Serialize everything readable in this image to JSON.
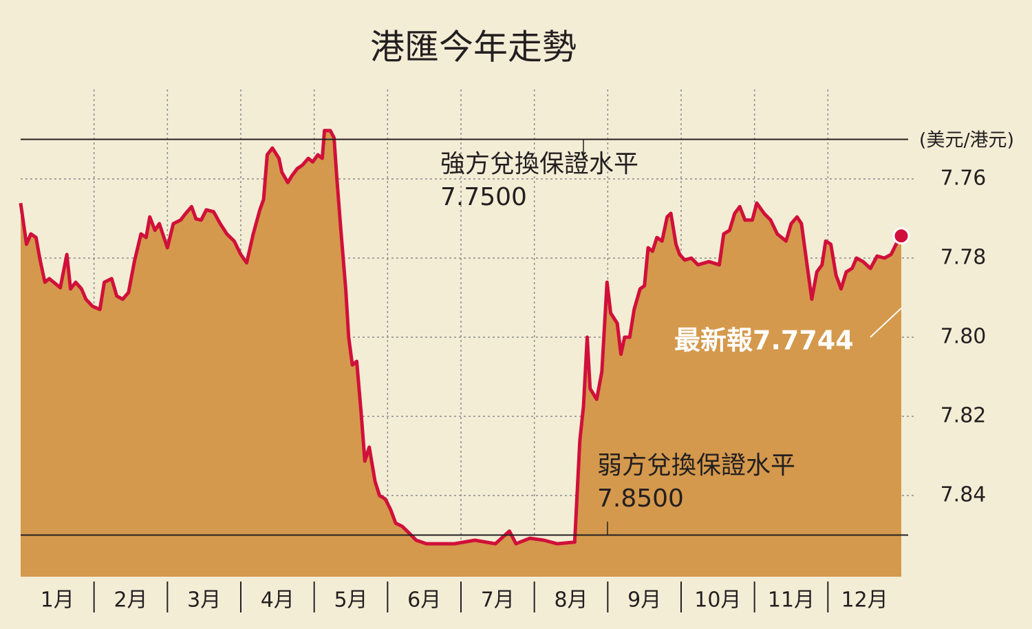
{
  "chart_data": {
    "type": "area",
    "title": "港匯今年走勢",
    "y_label": "(美元/港元)",
    "categories": [
      "1月",
      "2月",
      "3月",
      "4月",
      "5月",
      "6月",
      "7月",
      "8月",
      "9月",
      "10月",
      "11月",
      "12月"
    ],
    "xlim": [
      0,
      12
    ],
    "ylim": [
      7.74,
      7.86
    ],
    "inverted": true,
    "yticks": [
      7.76,
      7.78,
      {
        "value": 7.8,
        "label": "7.80"
      },
      7.82,
      7.84
    ],
    "grid": true,
    "series": [
      {
        "color": "#d0103a",
        "fill": "#d4994c",
        "x": [
          0,
          0.08,
          0.14,
          0.21,
          0.26,
          0.33,
          0.39,
          0.47,
          0.54,
          0.63,
          0.68,
          0.75,
          0.83,
          0.89,
          0.98,
          1.08,
          1.14,
          1.24,
          1.31,
          1.39,
          1.47,
          1.55,
          1.64,
          1.71,
          1.76,
          1.83,
          1.89,
          2.0,
          2.08,
          2.18,
          2.25,
          2.33,
          2.39,
          2.46,
          2.53,
          2.63,
          2.72,
          2.81,
          2.91,
          3.0,
          3.08,
          3.17,
          3.26,
          3.31,
          3.36,
          3.43,
          3.52,
          3.56,
          3.64,
          3.7,
          3.77,
          3.84,
          3.92,
          3.98,
          4.05,
          4.11,
          4.14,
          4.22,
          4.27,
          4.31,
          4.36,
          4.43,
          4.47,
          4.52,
          4.58,
          4.64,
          4.69,
          4.75,
          4.83,
          4.89,
          4.97,
          5.04,
          5.11,
          5.2,
          5.3,
          5.39,
          5.53,
          5.91,
          6.19,
          6.47,
          6.66,
          6.75,
          6.94,
          7.13,
          7.31,
          7.55,
          7.62,
          7.67,
          7.72,
          7.76,
          7.85,
          7.92,
          7.99,
          8.04,
          8.13,
          8.18,
          8.23,
          8.3,
          8.36,
          8.44,
          8.5,
          8.55,
          8.61,
          8.67,
          8.74,
          8.81,
          8.86,
          8.93,
          8.98,
          9.05,
          9.14,
          9.23,
          9.38,
          9.52,
          9.58,
          9.66,
          9.73,
          9.8,
          9.87,
          9.97,
          10.03,
          10.13,
          10.22,
          10.31,
          10.43,
          10.5,
          10.58,
          10.64,
          10.71,
          10.78,
          10.85,
          10.92,
          10.97,
          11.04,
          11.11,
          11.18,
          11.25,
          11.33,
          11.39,
          11.48,
          11.58,
          11.67,
          11.77,
          11.86,
          11.93,
          12.0
        ],
        "values": [
          7.7661,
          7.7765,
          7.7739,
          7.7748,
          7.78,
          7.7861,
          7.7852,
          7.7864,
          7.7875,
          7.7791,
          7.7878,
          7.7861,
          7.7878,
          7.7904,
          7.7922,
          7.793,
          7.7861,
          7.7852,
          7.7896,
          7.7904,
          7.7887,
          7.7809,
          7.7739,
          7.7748,
          7.7696,
          7.773,
          7.7713,
          7.7774,
          7.7713,
          7.7704,
          7.7687,
          7.767,
          7.7701,
          7.7704,
          7.7678,
          7.7683,
          7.7713,
          7.7739,
          7.7757,
          7.7791,
          7.7812,
          7.7739,
          7.7678,
          7.7652,
          7.7539,
          7.7522,
          7.7548,
          7.7583,
          7.7609,
          7.7591,
          7.7574,
          7.7565,
          7.7548,
          7.7557,
          7.7539,
          7.7548,
          7.7478,
          7.7478,
          7.7496,
          7.76,
          7.7722,
          7.7878,
          7.8,
          7.807,
          7.8061,
          7.8191,
          7.8313,
          7.8278,
          7.8365,
          7.84,
          7.8409,
          7.8435,
          7.847,
          7.8478,
          7.8496,
          7.8513,
          7.8522,
          7.8522,
          7.8513,
          7.8522,
          7.849,
          7.8522,
          7.8508,
          7.8513,
          7.8522,
          7.8518,
          7.8261,
          7.8174,
          7.8,
          7.813,
          7.8157,
          7.8087,
          7.7861,
          7.7939,
          7.7965,
          7.8043,
          7.8,
          7.8,
          7.793,
          7.7878,
          7.787,
          7.7774,
          7.7783,
          7.7748,
          7.7757,
          7.7696,
          7.7687,
          7.7765,
          7.7791,
          7.7805,
          7.78,
          7.7817,
          7.7809,
          7.7817,
          7.7739,
          7.773,
          7.7687,
          7.767,
          7.7704,
          7.7704,
          7.7661,
          7.7687,
          7.7704,
          7.7739,
          7.7757,
          7.7713,
          7.7696,
          7.7713,
          7.7809,
          7.7904,
          7.7835,
          7.7817,
          7.7757,
          7.7765,
          7.7843,
          7.7878,
          7.7835,
          7.7826,
          7.78,
          7.7809,
          7.7826,
          7.7795,
          7.78,
          7.7791,
          7.7765,
          7.7744
        ]
      }
    ],
    "reference_lines": [
      {
        "value": 7.75,
        "label": "強方兌換保證水平",
        "value_label": "7.7500"
      },
      {
        "value": 7.85,
        "label": "弱方兌換保證水平",
        "value_label": "7.8500"
      }
    ],
    "annotation": "最新報7.7744"
  }
}
